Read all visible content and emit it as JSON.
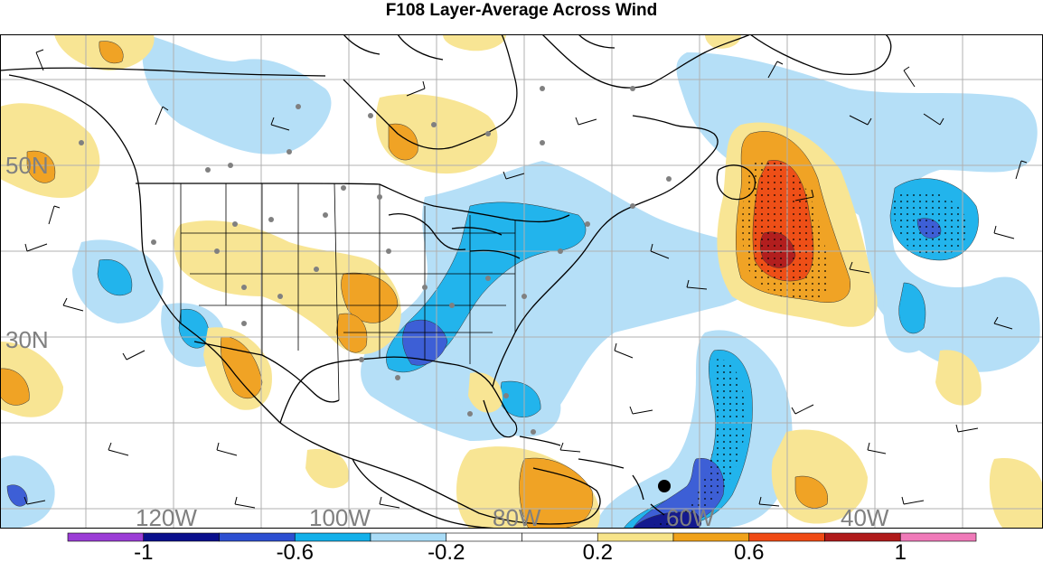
{
  "title": "F108 Layer-Average Across Wind",
  "map": {
    "lat_labels": [
      "50N",
      "30N"
    ],
    "lon_labels": [
      "120W",
      "100W",
      "80W",
      "60W",
      "40W"
    ]
  },
  "colorbar": {
    "bins": [
      "#9b3dd6",
      "#0a0f8c",
      "#2d4fd1",
      "#12b0ea",
      "#a9dcf7",
      "#ffffff",
      "#ffffff",
      "#f7e48a",
      "#f0a21a",
      "#f04a14",
      "#b01a1a",
      "#f07ab9"
    ],
    "labels": [
      {
        "text": "-1",
        "value": -1
      },
      {
        "text": "-0.6",
        "value": -0.6
      },
      {
        "text": "-0.2",
        "value": -0.2
      },
      {
        "text": "0.2",
        "value": 0.2
      },
      {
        "text": "0.6",
        "value": 0.6
      },
      {
        "text": "1",
        "value": 1
      }
    ]
  },
  "colors": {
    "neg_light": "#b5dff7",
    "neg_mid": "#22b4ec",
    "neg_strong": "#3d5fd6",
    "neg_deep": "#141a8f",
    "pos_light": "#f8e594",
    "pos_mid": "#f0a325",
    "pos_strong": "#ee4f17",
    "pos_deep": "#b21e1e",
    "coast": "#000000",
    "grid": "#b0b0b0",
    "station_dot": "#808080",
    "marker": "#000000"
  }
}
